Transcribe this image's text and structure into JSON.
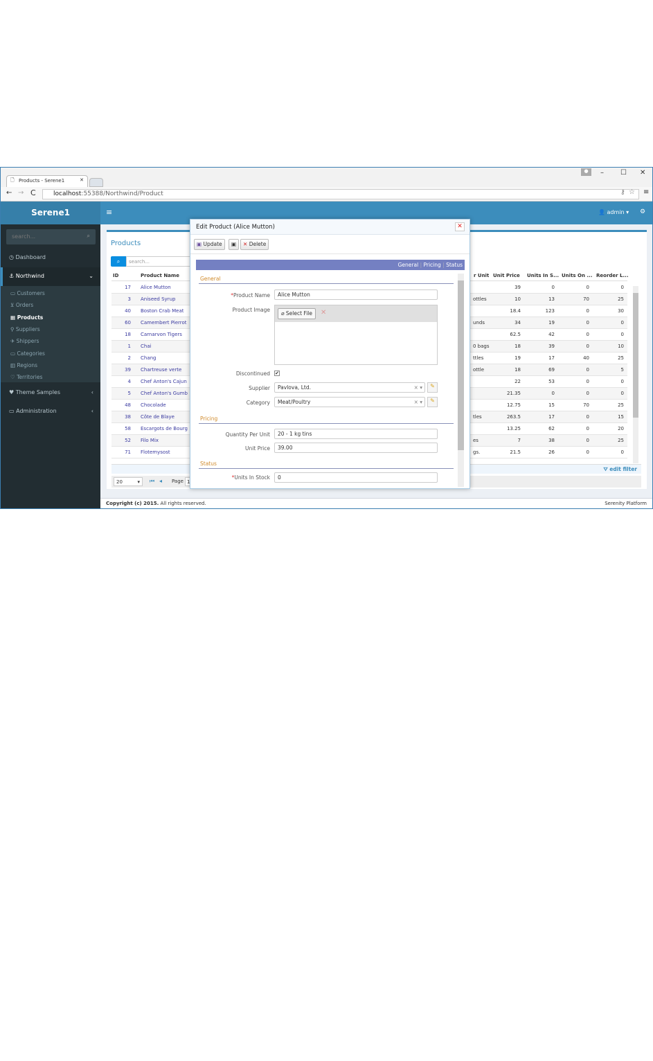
{
  "browser": {
    "tab_title": "Products - Serene1",
    "url_host": "localhost",
    "url_rest": ":55388/Northwind/Product"
  },
  "app": {
    "brand": "Serene1",
    "user": "admin"
  },
  "sidebar": {
    "search_placeholder": "search...",
    "items": [
      {
        "label": "Dashboard"
      },
      {
        "label": "Northwind"
      },
      {
        "label": "Theme Samples"
      },
      {
        "label": "Administration"
      }
    ],
    "sub_items": [
      {
        "label": "Customers"
      },
      {
        "label": "Orders"
      },
      {
        "label": "Products",
        "active": true
      },
      {
        "label": "Suppliers"
      },
      {
        "label": "Shippers"
      },
      {
        "label": "Categories"
      },
      {
        "label": "Regions"
      },
      {
        "label": "Territories"
      }
    ]
  },
  "grid": {
    "title": "Products",
    "search_placeholder": "search...",
    "columns": [
      "ID",
      "Product Name",
      "r Unit",
      "Unit Price",
      "Units In S...",
      "Units On ...",
      "Reorder L..."
    ],
    "rows": [
      [
        "17",
        "Alice Mutton",
        "",
        "39",
        "0",
        "0",
        "0"
      ],
      [
        "3",
        "Aniseed Syrup",
        "ottles",
        "10",
        "13",
        "70",
        "25"
      ],
      [
        "40",
        "Boston Crab Meat",
        "",
        "18.4",
        "123",
        "0",
        "30"
      ],
      [
        "60",
        "Camembert Pierrot",
        "unds",
        "34",
        "19",
        "0",
        "0"
      ],
      [
        "18",
        "Carnarvon Tigers",
        "",
        "62.5",
        "42",
        "0",
        "0"
      ],
      [
        "1",
        "Chai",
        "0 bags",
        "18",
        "39",
        "0",
        "10"
      ],
      [
        "2",
        "Chang",
        "ttles",
        "19",
        "17",
        "40",
        "25"
      ],
      [
        "39",
        "Chartreuse verte",
        "ottle",
        "18",
        "69",
        "0",
        "5"
      ],
      [
        "4",
        "Chef Anton's Cajun",
        "",
        "22",
        "53",
        "0",
        "0"
      ],
      [
        "5",
        "Chef Anton's Gumb",
        "",
        "21.35",
        "0",
        "0",
        "0"
      ],
      [
        "48",
        "Chocolade",
        "",
        "12.75",
        "15",
        "70",
        "25"
      ],
      [
        "38",
        "Côte de Blaye",
        "tles",
        "263.5",
        "17",
        "0",
        "15"
      ],
      [
        "58",
        "Escargots de Bourg",
        "",
        "13.25",
        "62",
        "0",
        "20"
      ],
      [
        "52",
        "Filo Mix",
        "es",
        "7",
        "38",
        "0",
        "25"
      ],
      [
        "71",
        "Flotemysost",
        "gs.",
        "21.5",
        "26",
        "0",
        "0"
      ]
    ],
    "edit_filter": "edit filter",
    "page_size": "20",
    "page_label": "Page",
    "page_value": "1"
  },
  "footer": {
    "copyright_bold": "Copyright (c) 2015.",
    "copyright_rest": " All rights reserved.",
    "platform": "Serenity Platform"
  },
  "dialog": {
    "title": "Edit Product (Alice Mutton)",
    "update": "Update",
    "delete": "Delete",
    "tabs": [
      "General",
      "Pricing",
      "Status"
    ],
    "sep": "|",
    "sections": {
      "general": "General",
      "pricing": "Pricing",
      "status": "Status"
    },
    "fields": {
      "product_name_label": "Product Name",
      "product_name": "Alice Mutton",
      "product_image_label": "Product Image",
      "select_file": "Select File",
      "discontinued_label": "Discontinued",
      "discontinued": true,
      "supplier_label": "Supplier",
      "supplier": "Pavlova, Ltd.",
      "category_label": "Category",
      "category": "Meat/Poultry",
      "qpu_label": "Quantity Per Unit",
      "qpu": "20 - 1 kg tins",
      "unit_price_label": "Unit Price",
      "unit_price": "39.00",
      "units_in_stock_label": "Units In Stock",
      "units_in_stock": "0"
    }
  },
  "colors": {
    "header": "#3c8dbc",
    "sidebar": "#222d32",
    "tabstrip": "#7480c2",
    "section": "#d08a2b",
    "link": "#3a3aa0"
  }
}
